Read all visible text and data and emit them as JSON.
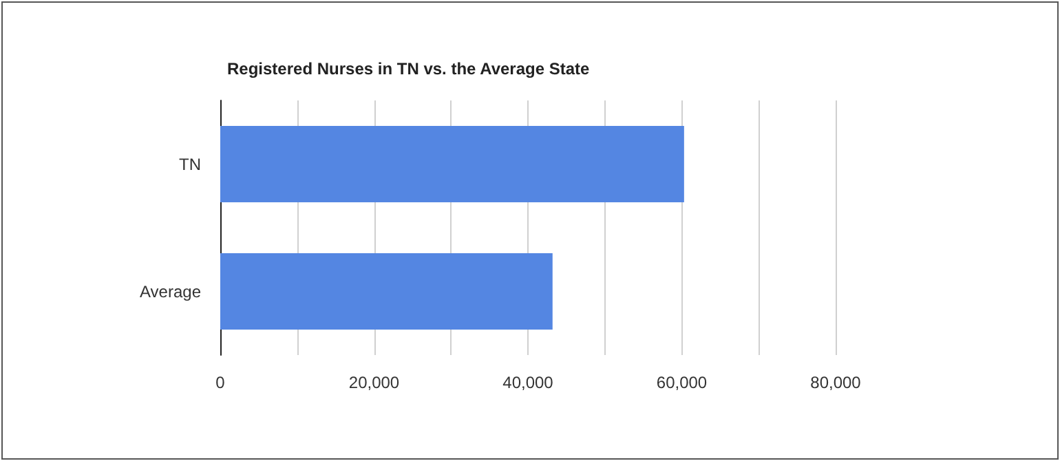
{
  "chart_data": {
    "type": "bar",
    "orientation": "horizontal",
    "title": "Registered Nurses in TN vs. the Average State",
    "categories": [
      "TN",
      "Average"
    ],
    "values": [
      60300,
      43200
    ],
    "color": "#5486e2",
    "xlim": [
      0,
      80000
    ],
    "xticks": [
      0,
      {
        "value": 10000,
        "label": null
      },
      {
        "value": 20000,
        "label": "20,000"
      },
      {
        "value": 30000,
        "label": null
      },
      {
        "value": 40000,
        "label": "40,000"
      },
      {
        "value": 50000,
        "label": null
      },
      {
        "value": 60000,
        "label": "60,000"
      },
      {
        "value": 70000,
        "label": null
      },
      {
        "value": 80000,
        "label": "80,000"
      }
    ],
    "grid": "x"
  }
}
